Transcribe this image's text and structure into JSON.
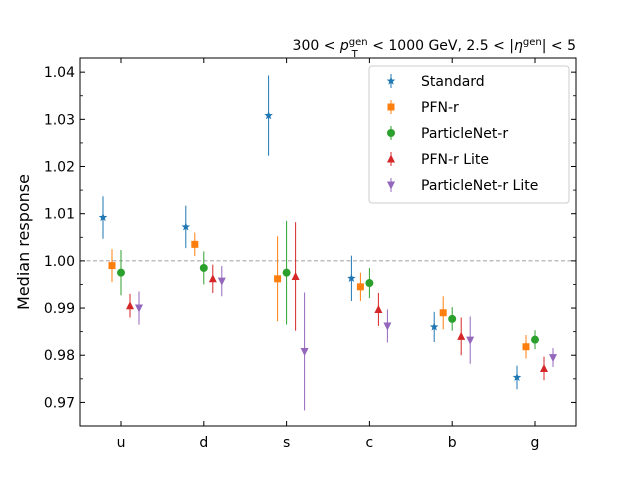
{
  "chart_data": {
    "type": "scatter",
    "title": "300 < p_T^gen < 1000 GeV, 2.5 < |η^gen| < 5",
    "title_parts": {
      "pre": "300 < ",
      "p": "p",
      "p_sub": "T",
      "p_sup": "gen",
      "mid": " < 1000 GeV, 2.5 < |",
      "eta": "η",
      "eta_sup": "gen",
      "post": "| < 5"
    },
    "ylabel": "Median response",
    "xlabel": "",
    "categories": [
      "u",
      "d",
      "s",
      "c",
      "b",
      "g"
    ],
    "ylim": [
      0.965,
      1.043
    ],
    "yticks": [
      "0.97",
      "0.98",
      "0.99",
      "1.00",
      "1.01",
      "1.02",
      "1.03",
      "1.04"
    ],
    "reference_line": 1.0,
    "legend_position": "top-right",
    "series": [
      {
        "name": "Standard",
        "color": "#1f77b4",
        "marker": "star",
        "values": [
          1.0092,
          1.0072,
          1.0308,
          0.9963,
          0.986,
          0.9753
        ],
        "errors": [
          0.0045,
          0.0045,
          0.0085,
          0.0048,
          0.0032,
          0.0025
        ]
      },
      {
        "name": "PFN-r",
        "color": "#ff7f0e",
        "marker": "square",
        "values": [
          0.999,
          1.0035,
          0.9962,
          0.9945,
          0.989,
          0.9818
        ],
        "errors": [
          0.0035,
          0.0025,
          0.009,
          0.003,
          0.0035,
          0.0025
        ]
      },
      {
        "name": "ParticleNet-r",
        "color": "#2ca02c",
        "marker": "circle",
        "values": [
          0.9975,
          0.9985,
          0.9975,
          0.9953,
          0.9877,
          0.9833
        ],
        "errors": [
          0.0048,
          0.0035,
          0.011,
          0.0032,
          0.0025,
          0.002
        ]
      },
      {
        "name": "PFN-r Lite",
        "color": "#d62728",
        "marker": "triangle-up",
        "values": [
          0.9905,
          0.9962,
          0.9967,
          0.9897,
          0.984,
          0.9772
        ],
        "errors": [
          0.0025,
          0.003,
          0.0115,
          0.0035,
          0.004,
          0.0025
        ]
      },
      {
        "name": "ParticleNet-r Lite",
        "color": "#9467bd",
        "marker": "triangle-down",
        "values": [
          0.99,
          0.9957,
          0.9808,
          0.9862,
          0.9832,
          0.9795
        ],
        "errors": [
          0.0035,
          0.0032,
          0.0125,
          0.0035,
          0.005,
          0.002
        ]
      }
    ]
  }
}
